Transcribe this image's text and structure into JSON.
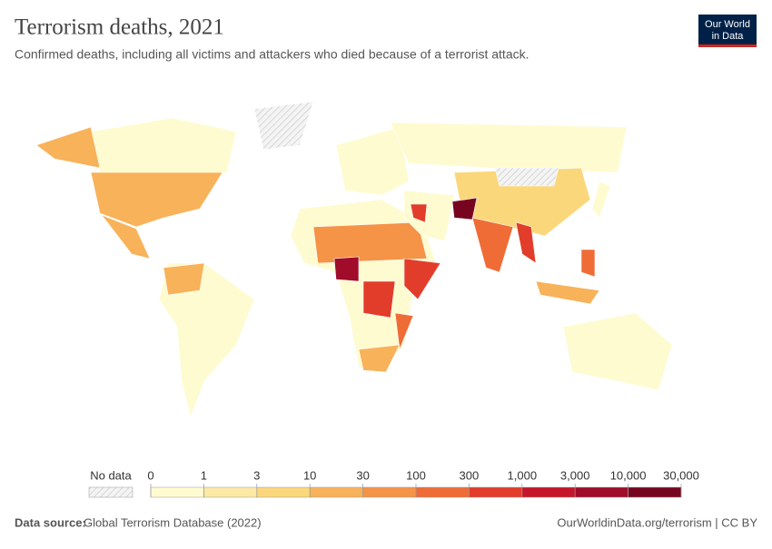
{
  "header": {
    "title": "Terrorism deaths, 2021",
    "subtitle": "Confirmed deaths, including all victims and attackers who died because of a terrorist attack.",
    "logo": [
      "Our World",
      "in Data"
    ]
  },
  "legend": {
    "no_data": "No data",
    "ticks": [
      0,
      1,
      3,
      10,
      30,
      100,
      300,
      {
        "value": 1000,
        "label": "1,000"
      },
      {
        "value": 3000,
        "label": "3,000"
      },
      {
        "value": 10000,
        "label": "10,000"
      },
      {
        "value": 30000,
        "label": "30,000"
      }
    ],
    "colors": [
      "#fefbd0",
      "#fce9a4",
      "#fbd77c",
      "#f8b25a",
      "#f59347",
      "#ef6c36",
      "#e23c2b",
      "#c5162b",
      "#a00c2a",
      "#78051f"
    ]
  },
  "footer": {
    "source_label": "Data source:",
    "source": "Global Terrorism Database (2022)",
    "url": "OurWorldinData.org/terrorism | CC BY"
  }
}
